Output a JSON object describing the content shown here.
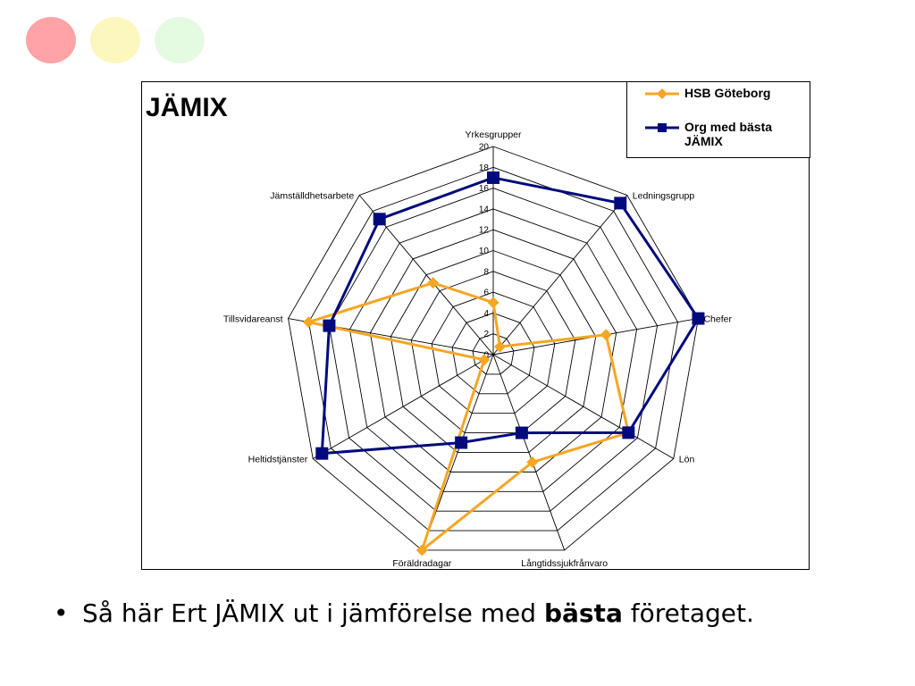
{
  "decor": {
    "dot_colors": [
      "#ffa3a6",
      "#fbf7bf",
      "#e4fbe2"
    ]
  },
  "chart_data": {
    "type": "radar",
    "title": "JÄMIX",
    "categories": [
      "Yrkesgrupper",
      "Ledningsgrupp",
      "Chefer",
      "Lön",
      "Långtidssjukfrånvaro",
      "Föräldradagar",
      "Heltidstjänster",
      "Tillsvidareanst",
      "Jämställdhetsarbete"
    ],
    "rlim": [
      0,
      20
    ],
    "ticks": [
      0,
      2,
      4,
      6,
      8,
      10,
      12,
      14,
      16,
      18,
      20
    ],
    "grid": true,
    "legend_position": "top-right",
    "series": [
      {
        "name": "HSB Göteborg",
        "color": "#f5a623",
        "marker": "diamond",
        "values": [
          5,
          1,
          11,
          15,
          11,
          20,
          1,
          18,
          9
        ]
      },
      {
        "name": "Org med bästa JÄMIX",
        "color": "#000a7d",
        "marker": "square",
        "values": [
          17,
          19,
          20,
          15,
          8,
          9,
          19,
          16,
          17
        ]
      }
    ]
  },
  "slide": {
    "bullet": "•",
    "text_pre": "Så här Ert JÄMIX ut i jämförelse med ",
    "text_bold": "bästa",
    "text_post": " företaget."
  }
}
